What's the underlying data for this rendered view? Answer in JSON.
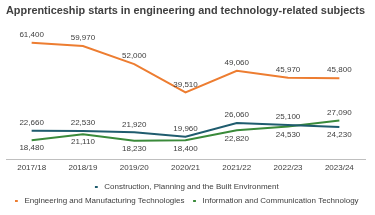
{
  "chart_data": {
    "type": "line",
    "title": "Apprenticeship starts in engineering and technology-related subjects",
    "categories": [
      "2017/18",
      "2018/19",
      "2019/20",
      "2020/21",
      "2021/22",
      "2022/23",
      "2023/24"
    ],
    "series": [
      {
        "name": "Construction, Planning and the Built Environment",
        "color": "#1f5c6e",
        "values": [
          22660,
          22530,
          21920,
          19960,
          26060,
          25100,
          24230
        ],
        "value_labels": [
          "22,660",
          "22,530",
          "21,920",
          "19,960",
          "26,060",
          "25,100",
          "24,230"
        ]
      },
      {
        "name": "Engineering and Manufacturing Technologies",
        "color": "#ed7d31",
        "values": [
          61400,
          59970,
          52000,
          39510,
          49060,
          45970,
          45800
        ],
        "value_labels": [
          "61,400",
          "59,970",
          "52,000",
          "39,510",
          "49,060",
          "45,970",
          "45,800"
        ]
      },
      {
        "name": "Information and Communication Technology",
        "color": "#3a8a3a",
        "values": [
          18480,
          21110,
          18230,
          18400,
          22820,
          24530,
          27090
        ],
        "value_labels": [
          "18,480",
          "21,110",
          "18,230",
          "18,400",
          "22,820",
          "24,530",
          "27,090"
        ]
      }
    ],
    "ylim": [
      10000,
      70000
    ],
    "yticks": [
      10000,
      70000
    ],
    "tick_labels": "x",
    "grid": false,
    "legend": "bottom",
    "data_labels": true
  }
}
